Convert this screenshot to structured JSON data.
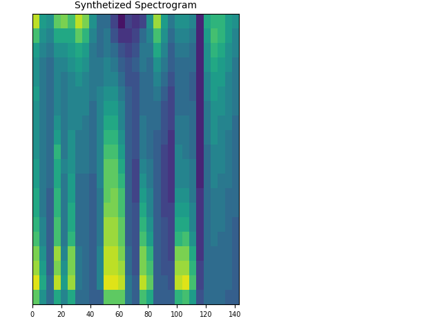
{
  "chart_data": {
    "type": "heatmap",
    "title": "Synthetized Spectrogram",
    "xlim": [
      0,
      143
    ],
    "xticks": [
      0,
      20,
      40,
      60,
      80,
      100,
      120,
      140
    ],
    "tick_labels": "x",
    "color": "viridis",
    "value_range": [
      0,
      1
    ],
    "cells": [
      [
        0.75,
        0.95,
        0.85,
        0.8,
        0.7,
        0.65,
        0.6,
        0.6,
        0.55,
        0.55,
        0.5,
        0.5,
        0.5,
        0.5,
        0.55,
        0.5,
        0.5,
        0.55,
        0.7,
        0.9
      ],
      [
        0.5,
        0.6,
        0.55,
        0.5,
        0.45,
        0.45,
        0.4,
        0.4,
        0.4,
        0.4,
        0.4,
        0.4,
        0.4,
        0.4,
        0.4,
        0.4,
        0.4,
        0.45,
        0.5,
        0.55
      ],
      [
        0.35,
        0.35,
        0.3,
        0.3,
        0.3,
        0.3,
        0.3,
        0.3,
        0.35,
        0.35,
        0.35,
        0.35,
        0.35,
        0.35,
        0.35,
        0.35,
        0.35,
        0.4,
        0.45,
        0.5
      ],
      [
        0.6,
        0.9,
        0.8,
        0.85,
        0.7,
        0.7,
        0.65,
        0.65,
        0.6,
        0.6,
        0.65,
        0.55,
        0.5,
        0.45,
        0.45,
        0.45,
        0.45,
        0.5,
        0.6,
        0.75
      ],
      [
        0.45,
        0.55,
        0.5,
        0.45,
        0.4,
        0.4,
        0.4,
        0.4,
        0.4,
        0.45,
        0.4,
        0.4,
        0.4,
        0.4,
        0.4,
        0.4,
        0.45,
        0.5,
        0.6,
        0.8
      ],
      [
        0.6,
        0.85,
        0.8,
        0.8,
        0.65,
        0.6,
        0.6,
        0.55,
        0.55,
        0.5,
        0.5,
        0.5,
        0.45,
        0.45,
        0.45,
        0.45,
        0.5,
        0.55,
        0.6,
        0.7
      ],
      [
        0.35,
        0.4,
        0.4,
        0.4,
        0.35,
        0.35,
        0.35,
        0.35,
        0.35,
        0.4,
        0.4,
        0.4,
        0.45,
        0.45,
        0.45,
        0.5,
        0.55,
        0.6,
        0.75,
        0.9
      ],
      [
        0.35,
        0.35,
        0.35,
        0.35,
        0.35,
        0.35,
        0.35,
        0.35,
        0.35,
        0.4,
        0.4,
        0.4,
        0.4,
        0.45,
        0.45,
        0.45,
        0.5,
        0.55,
        0.65,
        0.8
      ],
      [
        0.3,
        0.3,
        0.3,
        0.3,
        0.3,
        0.3,
        0.3,
        0.3,
        0.3,
        0.35,
        0.35,
        0.35,
        0.35,
        0.35,
        0.4,
        0.4,
        0.4,
        0.4,
        0.45,
        0.5
      ],
      [
        0.3,
        0.45,
        0.45,
        0.45,
        0.4,
        0.4,
        0.4,
        0.4,
        0.45,
        0.45,
        0.45,
        0.45,
        0.45,
        0.45,
        0.45,
        0.4,
        0.4,
        0.35,
        0.35,
        0.35
      ],
      [
        0.75,
        0.95,
        0.9,
        0.9,
        0.85,
        0.85,
        0.8,
        0.75,
        0.75,
        0.75,
        0.7,
        0.65,
        0.6,
        0.55,
        0.5,
        0.45,
        0.45,
        0.4,
        0.4,
        0.35
      ],
      [
        0.75,
        0.95,
        0.9,
        0.9,
        0.85,
        0.85,
        0.8,
        0.8,
        0.75,
        0.75,
        0.7,
        0.65,
        0.6,
        0.55,
        0.5,
        0.45,
        0.4,
        0.35,
        0.25,
        0.2
      ],
      [
        0.75,
        0.9,
        0.85,
        0.8,
        0.75,
        0.75,
        0.7,
        0.7,
        0.65,
        0.6,
        0.55,
        0.5,
        0.45,
        0.45,
        0.4,
        0.35,
        0.3,
        0.25,
        0.15,
        0.05
      ],
      [
        0.4,
        0.4,
        0.35,
        0.35,
        0.3,
        0.3,
        0.3,
        0.3,
        0.3,
        0.3,
        0.3,
        0.3,
        0.3,
        0.3,
        0.3,
        0.25,
        0.25,
        0.2,
        0.15,
        0.2
      ],
      [
        0.3,
        0.3,
        0.25,
        0.25,
        0.25,
        0.25,
        0.25,
        0.2,
        0.2,
        0.2,
        0.25,
        0.25,
        0.25,
        0.25,
        0.25,
        0.25,
        0.3,
        0.25,
        0.2,
        0.15
      ],
      [
        0.7,
        0.9,
        0.8,
        0.8,
        0.7,
        0.65,
        0.6,
        0.55,
        0.5,
        0.45,
        0.4,
        0.4,
        0.4,
        0.35,
        0.35,
        0.35,
        0.4,
        0.4,
        0.35,
        0.2
      ],
      [
        0.6,
        0.75,
        0.7,
        0.65,
        0.55,
        0.5,
        0.45,
        0.45,
        0.4,
        0.4,
        0.35,
        0.35,
        0.35,
        0.35,
        0.35,
        0.35,
        0.35,
        0.4,
        0.45,
        0.5
      ],
      [
        0.3,
        0.3,
        0.3,
        0.3,
        0.3,
        0.3,
        0.3,
        0.3,
        0.3,
        0.3,
        0.3,
        0.3,
        0.35,
        0.35,
        0.4,
        0.45,
        0.5,
        0.6,
        0.7,
        0.85
      ],
      [
        0.3,
        0.3,
        0.25,
        0.25,
        0.25,
        0.25,
        0.2,
        0.2,
        0.2,
        0.2,
        0.2,
        0.25,
        0.25,
        0.25,
        0.3,
        0.35,
        0.4,
        0.45,
        0.5,
        0.55
      ],
      [
        0.3,
        0.25,
        0.25,
        0.2,
        0.2,
        0.2,
        0.2,
        0.15,
        0.15,
        0.15,
        0.15,
        0.15,
        0.2,
        0.2,
        0.2,
        0.25,
        0.3,
        0.3,
        0.35,
        0.4
      ],
      [
        0.65,
        0.9,
        0.85,
        0.8,
        0.65,
        0.6,
        0.55,
        0.5,
        0.45,
        0.45,
        0.45,
        0.4,
        0.4,
        0.35,
        0.35,
        0.35,
        0.35,
        0.4,
        0.45,
        0.5
      ],
      [
        0.7,
        0.95,
        0.85,
        0.8,
        0.7,
        0.6,
        0.55,
        0.5,
        0.45,
        0.45,
        0.4,
        0.4,
        0.4,
        0.35,
        0.35,
        0.35,
        0.35,
        0.4,
        0.45,
        0.5
      ],
      [
        0.55,
        0.7,
        0.65,
        0.6,
        0.5,
        0.45,
        0.45,
        0.4,
        0.4,
        0.4,
        0.35,
        0.35,
        0.35,
        0.35,
        0.3,
        0.3,
        0.35,
        0.35,
        0.4,
        0.45
      ],
      [
        0.25,
        0.2,
        0.2,
        0.15,
        0.15,
        0.15,
        0.15,
        0.15,
        0.1,
        0.1,
        0.1,
        0.1,
        0.1,
        0.1,
        0.1,
        0.1,
        0.1,
        0.1,
        0.1,
        0.1
      ],
      [
        0.35,
        0.35,
        0.35,
        0.35,
        0.35,
        0.35,
        0.35,
        0.35,
        0.35,
        0.35,
        0.35,
        0.4,
        0.4,
        0.4,
        0.45,
        0.45,
        0.5,
        0.5,
        0.55,
        0.6
      ],
      [
        0.35,
        0.35,
        0.35,
        0.35,
        0.4,
        0.4,
        0.4,
        0.4,
        0.45,
        0.45,
        0.45,
        0.5,
        0.5,
        0.5,
        0.55,
        0.55,
        0.6,
        0.65,
        0.7,
        0.65
      ],
      [
        0.35,
        0.35,
        0.35,
        0.35,
        0.35,
        0.4,
        0.4,
        0.4,
        0.4,
        0.45,
        0.45,
        0.45,
        0.45,
        0.5,
        0.5,
        0.55,
        0.55,
        0.6,
        0.65,
        0.65
      ],
      [
        0.3,
        0.35,
        0.35,
        0.35,
        0.35,
        0.35,
        0.35,
        0.35,
        0.4,
        0.4,
        0.4,
        0.4,
        0.45,
        0.45,
        0.45,
        0.45,
        0.5,
        0.5,
        0.55,
        0.55
      ],
      [
        0.3,
        0.3,
        0.3,
        0.3,
        0.3,
        0.3,
        0.35,
        0.35,
        0.35,
        0.35,
        0.35,
        0.35,
        0.35,
        0.4,
        0.4,
        0.4,
        0.4,
        0.45,
        0.45,
        0.5
      ]
    ]
  }
}
